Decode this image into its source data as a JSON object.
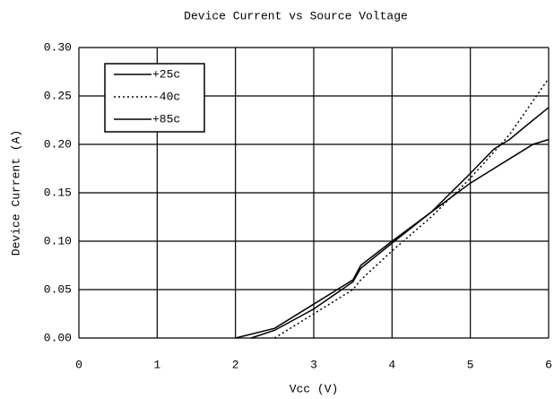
{
  "chart_data": {
    "type": "line",
    "title": "Device Current vs Source Voltage",
    "x_label": "Vcc (V)",
    "y_label": "Device Current (A)",
    "xlim": [
      0,
      6
    ],
    "xticks": [
      0,
      1,
      2,
      3,
      4,
      5,
      6
    ],
    "ylim": [
      0,
      0.3
    ],
    "yticks": [
      {
        "value": 0,
        "label": "0.00"
      },
      {
        "value": 0.05,
        "label": "0.05"
      },
      {
        "value": 0.1,
        "label": "0.10"
      },
      {
        "value": 0.15,
        "label": "0.15"
      },
      {
        "value": 0.2,
        "label": "0.20"
      },
      {
        "value": 0.25,
        "label": "0.25"
      },
      {
        "value": 0.3,
        "label": "0.30"
      }
    ],
    "grid": true,
    "legend": "upper left",
    "series": [
      {
        "name": "+25c",
        "color": "#000000",
        "dash": "solid",
        "x": [
          2.2,
          2.5,
          3,
          3.5,
          3.6,
          4,
          4.5,
          5,
          5.3,
          5.5,
          5.8,
          6
        ],
        "values": [
          0,
          0.008,
          0.03,
          0.058,
          0.072,
          0.098,
          0.13,
          0.17,
          0.195,
          0.205,
          0.225,
          0.238
        ]
      },
      {
        "name": "-40c",
        "color": "#000000",
        "dash": "dotted",
        "x": [
          2.5,
          3,
          3.5,
          3.6,
          4,
          4.5,
          5,
          5.5,
          6
        ],
        "values": [
          0,
          0.025,
          0.05,
          0.06,
          0.09,
          0.125,
          0.165,
          0.21,
          0.268
        ]
      },
      {
        "name": "+85c",
        "color": "#000000",
        "dash": "solid",
        "x": [
          2,
          2.5,
          3,
          3.5,
          3.6,
          4,
          4.5,
          5,
          5.3,
          5.5,
          5.8,
          6
        ],
        "values": [
          0,
          0.01,
          0.035,
          0.06,
          0.075,
          0.1,
          0.13,
          0.16,
          0.175,
          0.185,
          0.2,
          0.205
        ]
      }
    ]
  }
}
